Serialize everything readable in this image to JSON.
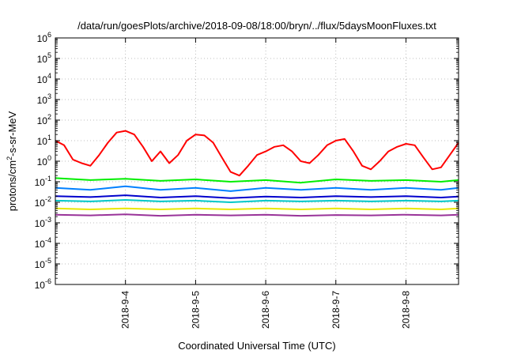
{
  "chart_data": {
    "type": "line",
    "title": "/data/run/goesPlots/archive/2018-09-08/18:00/bryn/../flux/5daysMoonFluxes.txt",
    "xlabel": "Coordinated Universal Time (UTC)",
    "ylabel": {
      "base": "protons/cm",
      "sup": "2",
      "rest": "-s-sr-MeV"
    },
    "x_range": [
      "2018-09-03 00:00",
      "2018-09-08 18:00"
    ],
    "x_ticks": [
      "2018-9-4",
      "2018-9-5",
      "2018-9-6",
      "2018-9-7",
      "2018-9-8"
    ],
    "y_scale": "log",
    "ylim": [
      1e-06,
      1000000.0
    ],
    "y_ticks": [
      {
        "base": "10",
        "exp": "6"
      },
      {
        "base": "10",
        "exp": "5"
      },
      {
        "base": "10",
        "exp": "4"
      },
      {
        "base": "10",
        "exp": "3"
      },
      {
        "base": "10",
        "exp": "2"
      },
      {
        "base": "10",
        "exp": "1"
      },
      {
        "base": "10",
        "exp": "0"
      },
      {
        "base": "10",
        "exp": "-1"
      },
      {
        "base": "10",
        "exp": "-2"
      },
      {
        "base": "10",
        "exp": "-3"
      },
      {
        "base": "10",
        "exp": "-4"
      },
      {
        "base": "10",
        "exp": "-5"
      },
      {
        "base": "10",
        "exp": "-6"
      }
    ],
    "grid": true,
    "series": [
      {
        "color": "#ff0000",
        "x": [
          "2018-09-03 00:00",
          "2018-09-03 03:00",
          "2018-09-03 06:00",
          "2018-09-03 09:00",
          "2018-09-03 12:00",
          "2018-09-03 15:00",
          "2018-09-03 18:00",
          "2018-09-03 21:00",
          "2018-09-04 00:00",
          "2018-09-04 03:00",
          "2018-09-04 06:00",
          "2018-09-04 09:00",
          "2018-09-04 12:00",
          "2018-09-04 15:00",
          "2018-09-04 18:00",
          "2018-09-04 21:00",
          "2018-09-05 00:00",
          "2018-09-05 03:00",
          "2018-09-05 06:00",
          "2018-09-05 09:00",
          "2018-09-05 12:00",
          "2018-09-05 15:00",
          "2018-09-05 18:00",
          "2018-09-05 21:00",
          "2018-09-06 00:00",
          "2018-09-06 03:00",
          "2018-09-06 06:00",
          "2018-09-06 09:00",
          "2018-09-06 12:00",
          "2018-09-06 15:00",
          "2018-09-06 18:00",
          "2018-09-06 21:00",
          "2018-09-07 00:00",
          "2018-09-07 03:00",
          "2018-09-07 06:00",
          "2018-09-07 09:00",
          "2018-09-07 12:00",
          "2018-09-07 15:00",
          "2018-09-07 18:00",
          "2018-09-07 21:00",
          "2018-09-08 00:00",
          "2018-09-08 03:00",
          "2018-09-08 06:00",
          "2018-09-08 09:00",
          "2018-09-08 12:00",
          "2018-09-08 15:00",
          "2018-09-08 18:00"
        ],
        "y": [
          10,
          6,
          1.2,
          0.8,
          0.6,
          2,
          8,
          25,
          30,
          20,
          5,
          1,
          3,
          0.8,
          2,
          10,
          20,
          18,
          8,
          1.5,
          0.3,
          0.2,
          0.6,
          2,
          3,
          5,
          6,
          3,
          1,
          0.8,
          2,
          6,
          10,
          12,
          3,
          0.6,
          0.4,
          1,
          3,
          5,
          7,
          6,
          1.5,
          0.4,
          0.5,
          2,
          8
        ]
      },
      {
        "color": "#00ee00",
        "x": [
          "2018-09-03 00:00",
          "2018-09-03 12:00",
          "2018-09-04 00:00",
          "2018-09-04 12:00",
          "2018-09-05 00:00",
          "2018-09-05 12:00",
          "2018-09-06 00:00",
          "2018-09-06 12:00",
          "2018-09-07 00:00",
          "2018-09-07 12:00",
          "2018-09-08 00:00",
          "2018-09-08 12:00",
          "2018-09-08 18:00"
        ],
        "y": [
          0.15,
          0.12,
          0.14,
          0.11,
          0.13,
          0.1,
          0.12,
          0.09,
          0.13,
          0.11,
          0.12,
          0.1,
          0.12
        ]
      },
      {
        "color": "#0080ff",
        "x": [
          "2018-09-03 00:00",
          "2018-09-03 12:00",
          "2018-09-04 00:00",
          "2018-09-04 12:00",
          "2018-09-05 00:00",
          "2018-09-05 12:00",
          "2018-09-06 00:00",
          "2018-09-06 12:00",
          "2018-09-07 00:00",
          "2018-09-07 12:00",
          "2018-09-08 00:00",
          "2018-09-08 12:00",
          "2018-09-08 18:00"
        ],
        "y": [
          0.05,
          0.04,
          0.06,
          0.04,
          0.05,
          0.035,
          0.05,
          0.04,
          0.05,
          0.04,
          0.05,
          0.04,
          0.05
        ]
      },
      {
        "color": "#0000cc",
        "x": [
          "2018-09-03 00:00",
          "2018-09-03 12:00",
          "2018-09-04 00:00",
          "2018-09-04 12:00",
          "2018-09-05 00:00",
          "2018-09-05 12:00",
          "2018-09-06 00:00",
          "2018-09-06 12:00",
          "2018-09-07 00:00",
          "2018-09-07 12:00",
          "2018-09-08 00:00",
          "2018-09-08 12:00",
          "2018-09-08 18:00"
        ],
        "y": [
          0.02,
          0.018,
          0.022,
          0.017,
          0.02,
          0.016,
          0.019,
          0.017,
          0.02,
          0.018,
          0.02,
          0.017,
          0.019
        ]
      },
      {
        "color": "#00c8c8",
        "x": [
          "2018-09-03 00:00",
          "2018-09-03 12:00",
          "2018-09-04 00:00",
          "2018-09-04 12:00",
          "2018-09-05 00:00",
          "2018-09-05 12:00",
          "2018-09-06 00:00",
          "2018-09-06 12:00",
          "2018-09-07 00:00",
          "2018-09-07 12:00",
          "2018-09-08 00:00",
          "2018-09-08 12:00",
          "2018-09-08 18:00"
        ],
        "y": [
          0.012,
          0.011,
          0.013,
          0.011,
          0.012,
          0.01,
          0.012,
          0.011,
          0.012,
          0.011,
          0.012,
          0.011,
          0.012
        ]
      },
      {
        "color": "#e8e800",
        "x": [
          "2018-09-03 00:00",
          "2018-09-03 12:00",
          "2018-09-04 00:00",
          "2018-09-04 12:00",
          "2018-09-05 00:00",
          "2018-09-05 12:00",
          "2018-09-06 00:00",
          "2018-09-06 12:00",
          "2018-09-07 00:00",
          "2018-09-07 12:00",
          "2018-09-08 00:00",
          "2018-09-08 12:00",
          "2018-09-08 18:00"
        ],
        "y": [
          0.005,
          0.0045,
          0.005,
          0.0045,
          0.005,
          0.0045,
          0.005,
          0.0045,
          0.005,
          0.0045,
          0.005,
          0.0045,
          0.005
        ]
      },
      {
        "color": "#993399",
        "x": [
          "2018-09-03 00:00",
          "2018-09-03 12:00",
          "2018-09-04 00:00",
          "2018-09-04 12:00",
          "2018-09-05 00:00",
          "2018-09-05 12:00",
          "2018-09-06 00:00",
          "2018-09-06 12:00",
          "2018-09-07 00:00",
          "2018-09-07 12:00",
          "2018-09-08 00:00",
          "2018-09-08 12:00",
          "2018-09-08 18:00"
        ],
        "y": [
          0.0025,
          0.0023,
          0.0026,
          0.0022,
          0.0025,
          0.0023,
          0.0025,
          0.0022,
          0.0024,
          0.0023,
          0.0025,
          0.0023,
          0.0025
        ]
      }
    ]
  }
}
